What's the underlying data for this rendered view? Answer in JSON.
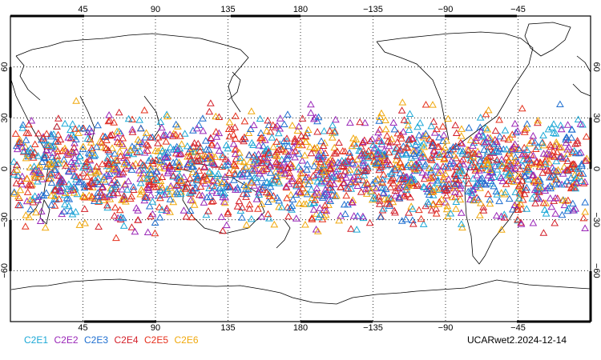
{
  "map": {
    "projection": "cylindrical-equidistant",
    "center_longitude": 180,
    "lat_range": [
      -90,
      90
    ],
    "lon_range": [
      0,
      360
    ],
    "grid": "dotted",
    "top_lon_labels": [
      "45",
      "90",
      "135",
      "180",
      "−135",
      "−90",
      "−45"
    ],
    "bottom_lon_labels": [
      "45",
      "90",
      "135",
      "180",
      "−135",
      "−90",
      "−45"
    ],
    "lat_labels": [
      "60",
      "30",
      "0",
      "−30",
      "−60"
    ],
    "land_outline_color": "#000000",
    "observation_marker": "triangle-outline",
    "observation_lat_band": [
      -45,
      45
    ]
  },
  "legend": [
    {
      "label": "C2E1",
      "color": "#1ca8d6"
    },
    {
      "label": "C2E2",
      "color": "#9a27b8"
    },
    {
      "label": "C2E3",
      "color": "#1f6fd0"
    },
    {
      "label": "C2E4",
      "color": "#d4202a"
    },
    {
      "label": "C2E5",
      "color": "#e5301c"
    },
    {
      "label": "C2E6",
      "color": "#f0a80c"
    }
  ],
  "stamp": "UCARwet2.2024-12-14"
}
